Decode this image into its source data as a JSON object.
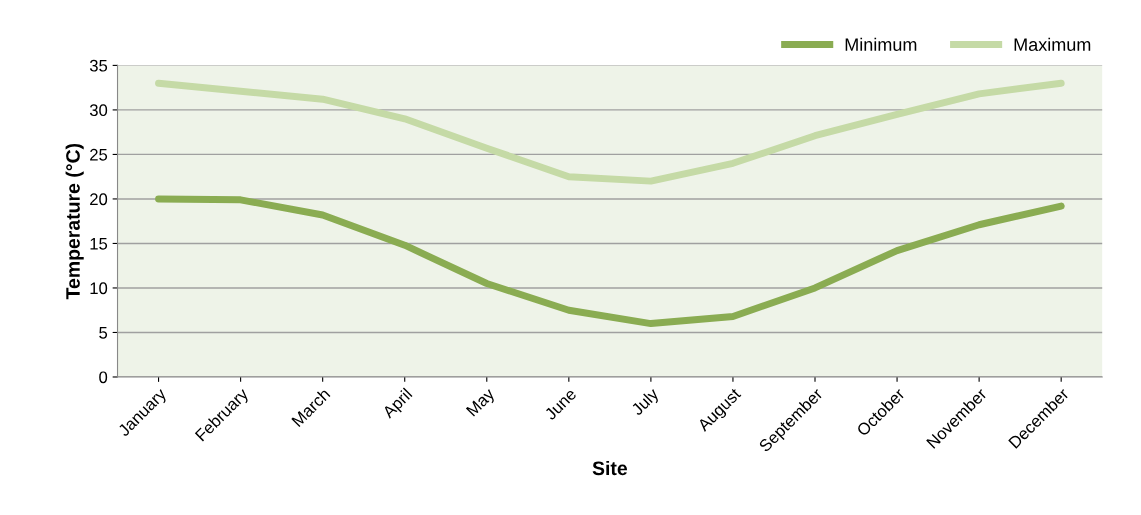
{
  "chart_data": {
    "type": "line",
    "xlabel": "Site",
    "ylabel": "Temperature (°C)",
    "categories": [
      "January",
      "February",
      "March",
      "April",
      "May",
      "June",
      "July",
      "August",
      "September",
      "October",
      "November",
      "December"
    ],
    "series": [
      {
        "name": "Minimum",
        "color": "#8aac52",
        "values": [
          20,
          19.9,
          18.2,
          14.8,
          10.5,
          7.5,
          6,
          6.8,
          10,
          14.2,
          17.1,
          19.2
        ]
      },
      {
        "name": "Maximum",
        "color": "#c5daa6",
        "values": [
          33,
          32.1,
          31.2,
          29,
          25.7,
          22.5,
          22,
          24,
          27.1,
          29.5,
          31.8,
          33
        ]
      }
    ],
    "ylim": [
      0,
      35
    ],
    "yticks": [
      0,
      5,
      10,
      15,
      20,
      25,
      30,
      35
    ],
    "grid": "y",
    "legend": "top right",
    "marker": "none",
    "line_style": "solid"
  }
}
